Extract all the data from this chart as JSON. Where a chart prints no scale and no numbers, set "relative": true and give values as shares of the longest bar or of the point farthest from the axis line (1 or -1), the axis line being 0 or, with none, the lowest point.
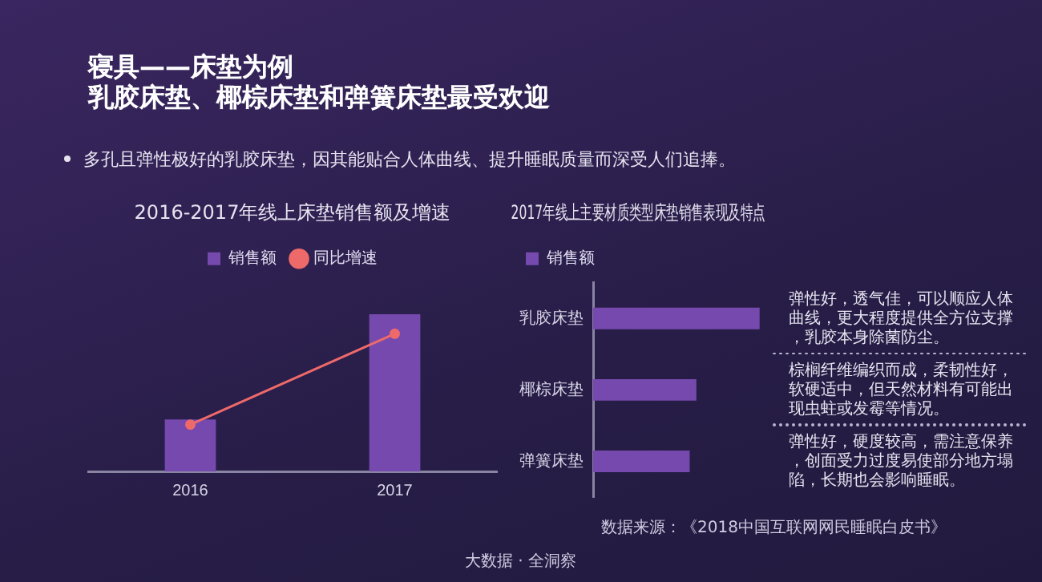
{
  "chart_data": [
    {
      "type": "bar",
      "title": "2016-2017年线上床垫销售额及增速",
      "categories": [
        "2016",
        "2017"
      ],
      "relative": true,
      "legend": "top",
      "grid": false,
      "marker": "circle",
      "series": [
        {
          "name": "销售额",
          "color": "#7549ad",
          "values": [
            0.33,
            1
          ]
        },
        {
          "name": "同比增速",
          "type": "line",
          "axis": "y2",
          "color": "#ee6a6a",
          "values": [
            0.34,
            1
          ]
        }
      ],
      "annotations": [
        "寝具——床垫为例",
        "乳胶床垫、椰棕床垫和弹簧床垫最受欢迎",
        "多孔且弹性极好的乳胶床垫，因其能贴合人体曲线、提升睡眠质量而深受人们追捧。"
      ]
    },
    {
      "type": "bar",
      "orientation": "horizontal",
      "title": "2017年线上主要材质类型床垫销售表现及特点",
      "categories": [
        "乳胶床垫",
        "椰棕床垫",
        "弹簧床垫"
      ],
      "relative": true,
      "legend": "top left",
      "grid": false,
      "series": [
        {
          "name": "销售额",
          "color": "#7549ad",
          "values": [
            1,
            0.62,
            0.58
          ]
        }
      ],
      "annotations": [
        "弹性好，透气佳，可以顺应人体曲线，更大程度提供全方位支撑，乳胶本身除菌防尘。",
        "棕榈纤维编织而成，柔韧性好，软硬适中，但天然材料有可能出现虫蛀或发霉等情况。",
        "弹性好，硬度较高，需注意保养，创面受力过度易使部分地方塌陷，长期也会影响睡眠。",
        "数据来源：《2018中国互联网网民睡眠白皮书》",
        "大数据 · 全洞察"
      ]
    }
  ]
}
